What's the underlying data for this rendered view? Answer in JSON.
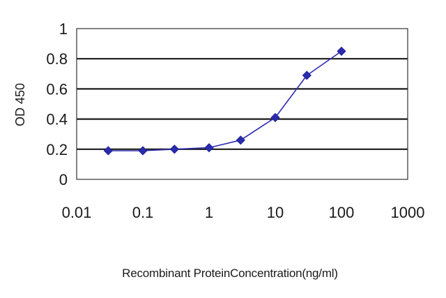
{
  "chart_data": {
    "type": "line",
    "title": "",
    "xlabel": "Recombinant ProteinConcentration(ng/ml)",
    "ylabel": "OD 450",
    "x_scale": "log",
    "xlim": [
      0.01,
      1000
    ],
    "ylim": [
      0,
      1
    ],
    "x_ticks": [
      0.01,
      0.1,
      1,
      10,
      100,
      1000
    ],
    "x_tick_labels": [
      "0.01",
      "0.1",
      "1",
      "10",
      "100",
      "1000"
    ],
    "y_ticks": [
      0,
      0.2,
      0.4,
      0.6,
      0.8,
      1
    ],
    "y_tick_labels": [
      "0",
      "0.2",
      "0.4",
      "0.6",
      "0.8",
      "1"
    ],
    "grid": "horizontal",
    "legend": "none",
    "series": [
      {
        "x": [
          0.03,
          0.1,
          0.3,
          1,
          3,
          10,
          30,
          100
        ],
        "y": [
          0.19,
          0.19,
          0.2,
          0.21,
          0.26,
          0.41,
          0.69,
          0.85
        ],
        "color": "#2b2bb0",
        "marker": "diamond"
      }
    ]
  }
}
